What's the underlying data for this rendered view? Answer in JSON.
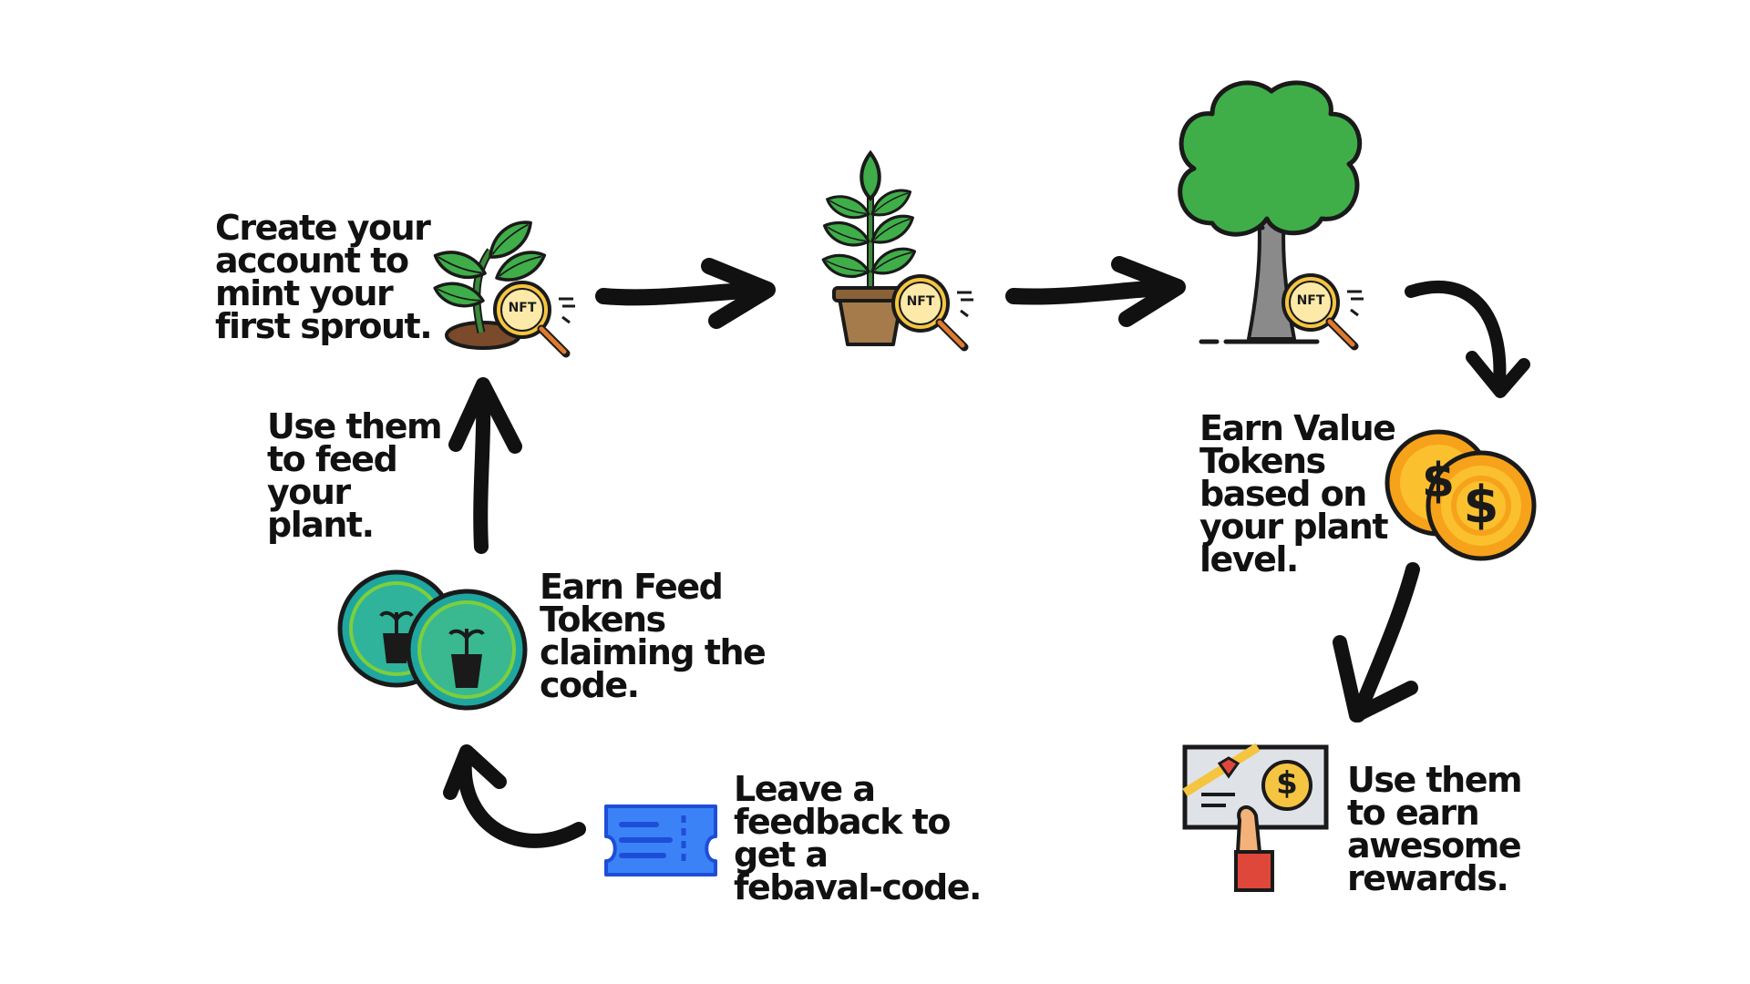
{
  "steps": {
    "create_account": "Create your\naccount to\nmint your\nfirst sprout.",
    "earn_value": "Earn Value\nTokens\nbased on\nyour plant\nlevel.",
    "use_rewards": "Use them\nto earn\nawesome\nrewards.",
    "leave_feedback": "Leave a\nfeedback to\nget a\nfebaval-code.",
    "earn_feed": "Earn Feed\nTokens\nclaiming the\ncode.",
    "feed_plant": "Use them\nto feed\nyour\nplant."
  },
  "badges": {
    "nft": "NFT",
    "dollar": "$"
  },
  "colors": {
    "leaf": "#3fae49",
    "leaf_dark": "#2a8a34",
    "outline": "#1a1a1a",
    "soil": "#7a4a2a",
    "pot": "#a57b4b",
    "trunk": "#8a8a8a",
    "magnifier": "#f5c542",
    "coin": "#f7a21b",
    "coin_inner": "#fbc02d",
    "ticket": "#3b82f6",
    "teal_coin": "#1fa6a0",
    "green_coin": "#7ccf3c",
    "bow": "#e0473b",
    "hand": "#f3b27a"
  },
  "icons": [
    "sprout-icon",
    "potted-plant-icon",
    "tree-icon",
    "gold-coins-icon",
    "reward-voucher-icon",
    "ticket-icon",
    "feed-token-coins-icon",
    "nft-magnifier-icon"
  ]
}
